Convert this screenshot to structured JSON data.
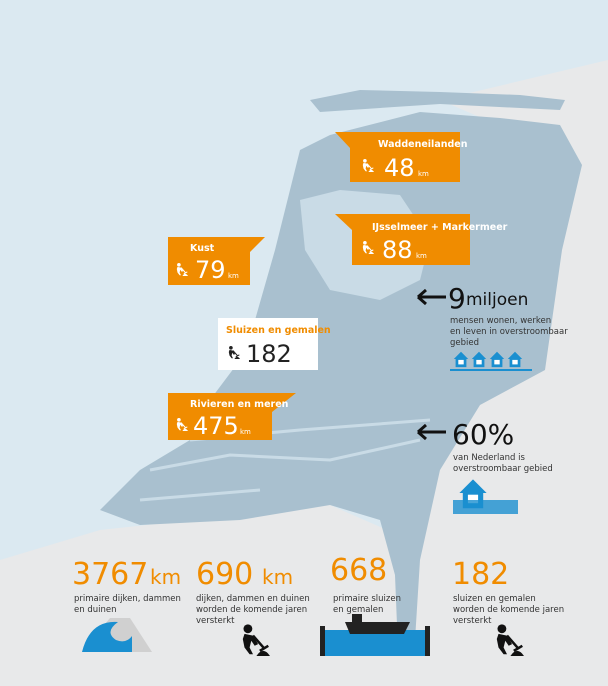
{
  "callouts": [
    {
      "label": "Waddeneilanden",
      "value": "48",
      "unit": "km"
    },
    {
      "label": "IJsselmeer + Markermeer",
      "value": "88",
      "unit": "km"
    },
    {
      "label": "Kust",
      "value": "79",
      "unit": "km"
    },
    {
      "label": "Sluizen en gemalen",
      "value": "182"
    },
    {
      "label": "Rivieren en meren",
      "value": "475",
      "unit": "km"
    }
  ],
  "facts": [
    {
      "value": "9",
      "unit": "miljoen",
      "lines": [
        "mensen wonen, werken",
        "en leven in overstroombaar",
        "gebied"
      ]
    },
    {
      "value": "60%",
      "lines": [
        "van Nederland is",
        "overstroombaar gebied"
      ]
    }
  ],
  "stats": [
    {
      "value": "3767",
      "unit": "km",
      "lines": [
        "primaire dijken, dammen",
        "en duinen"
      ]
    },
    {
      "value": "690",
      "unit": "km",
      "lines": [
        "dijken, dammen en duinen",
        "worden de komende jaren",
        "versterkt"
      ]
    },
    {
      "value": "668",
      "lines": [
        "primaire sluizen",
        "en gemalen"
      ]
    },
    {
      "value": "182",
      "lines": [
        "sluizen en gemalen",
        "worden de komende jaren",
        "versterkt"
      ]
    }
  ]
}
